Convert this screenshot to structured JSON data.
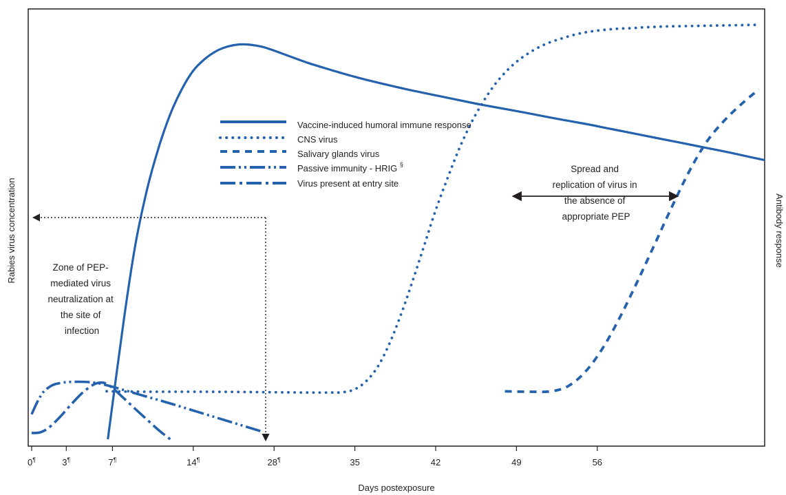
{
  "chart_data": {
    "type": "line",
    "xlabel": "Days postexposure",
    "ylabel_left": "Rabies virus concentration",
    "ylabel_right": "Antibody response",
    "xlim": [
      -0.3,
      63.5
    ],
    "ylim": [
      0,
      100
    ],
    "grid": false,
    "legend_position": "upper-center",
    "accent_color": "#2462ad",
    "ticks": [
      {
        "value": 0,
        "label": "0",
        "mark": "¶"
      },
      {
        "value": 3,
        "label": "3",
        "mark": "¶"
      },
      {
        "value": 7,
        "label": "7",
        "mark": "¶"
      },
      {
        "value": 14,
        "label": "14",
        "mark": "¶"
      },
      {
        "value": 28,
        "label": "28",
        "mark": "¶",
        "position": 21
      },
      {
        "value": 35,
        "label": "35",
        "mark": "",
        "position": 28
      },
      {
        "value": 42,
        "label": "42",
        "mark": "",
        "position": 35
      },
      {
        "value": 49,
        "label": "49",
        "mark": "",
        "position": 42
      },
      {
        "value": 56,
        "label": "56",
        "mark": "",
        "position": 49
      }
    ],
    "series": [
      {
        "name": "Vaccine-induced humoral  immune response",
        "style": "solid",
        "x": [
          6.6,
          8.0,
          9.0,
          10.0,
          11.0,
          12.0,
          13.0,
          14.0,
          15.0,
          16.0,
          17.0,
          18.0,
          19.0,
          20.0,
          21.0,
          22.0,
          24.0,
          26.0,
          28.0,
          30.0,
          33.0,
          36.0,
          39.0,
          42.0,
          45.0,
          48.0,
          50.0,
          52.0,
          54.0,
          56.0,
          58.0,
          60.0,
          62.0,
          63.5
        ],
        "y": [
          0,
          29,
          47,
          60,
          70,
          78,
          84,
          88.5,
          91.3,
          93.2,
          94.3,
          94.8,
          94.7,
          94.2,
          93.3,
          92.3,
          90.3,
          88.6,
          87.0,
          85.6,
          83.7,
          82.0,
          80.3,
          78.8,
          77.2,
          75.7,
          74.6,
          73.5,
          72.4,
          71.3,
          70.2,
          69.1,
          67.9,
          67.0
        ]
      },
      {
        "name": "CNS virus",
        "style": "dotted",
        "x": [
          6.5,
          10.0,
          15.0,
          20.0,
          24.0,
          26.0,
          27.0,
          28.0,
          29.0,
          30.0,
          31.0,
          32.0,
          33.0,
          34.0,
          35.0,
          36.0,
          37.0,
          38.0,
          39.0,
          40.0,
          41.0,
          42.0,
          43.0,
          44.0,
          45.0,
          46.0,
          47.0,
          48.0,
          49.0,
          50.0,
          51.0,
          52.0,
          53.0,
          54.0,
          55.0,
          57.0,
          59.0,
          61.0,
          63.0
        ],
        "y": [
          11.5,
          11.4,
          11.4,
          11.3,
          11.2,
          11.2,
          11.3,
          12.0,
          14.0,
          17.5,
          23.0,
          30.0,
          38.0,
          46.5,
          55.0,
          62.5,
          69.5,
          75.5,
          80.5,
          84.7,
          88.0,
          90.6,
          92.6,
          94.2,
          95.4,
          96.3,
          97.1,
          97.7,
          98.1,
          98.4,
          98.6,
          98.7,
          98.9,
          99.0,
          99.1,
          99.2,
          99.3,
          99.4,
          99.5
        ]
      },
      {
        "name": "Salivary glands virus",
        "style": "dashed",
        "x": [
          41.0,
          43.0,
          45.0,
          46.5,
          48.0,
          49.5,
          51.0,
          52.5,
          54.0,
          55.5,
          57.0,
          58.5,
          60.0,
          61.5,
          63.0
        ],
        "y": [
          11.5,
          11.4,
          11.5,
          12.8,
          16.3,
          22.0,
          29.5,
          38.0,
          47.0,
          56.0,
          64.5,
          71.5,
          76.5,
          80.5,
          84.0
        ]
      },
      {
        "name": "Passive immunity - HRIG",
        "name_mark": "§",
        "style": "dash-dot-dot",
        "x": [
          0.0,
          0.5,
          1.0,
          1.5,
          2.0,
          3.0,
          4.0,
          5.0,
          6.0,
          7.0,
          8.0,
          10.0,
          12.0,
          14.0,
          16.0,
          18.0,
          20.0
        ],
        "y": [
          6.0,
          9.0,
          11.3,
          12.5,
          13.2,
          13.7,
          13.8,
          13.7,
          13.3,
          12.6,
          11.8,
          10.2,
          8.6,
          6.9,
          5.2,
          3.5,
          1.8
        ]
      },
      {
        "name": "Virus present at entry site",
        "style": "dash-dot",
        "x": [
          0.0,
          0.3,
          0.8,
          1.5,
          2.5,
          3.5,
          4.5,
          5.5,
          6.3,
          7.0,
          8.0,
          9.0,
          10.0,
          11.0,
          12.0
        ],
        "y": [
          1.5,
          1.5,
          1.7,
          2.8,
          5.5,
          8.6,
          11.4,
          13.3,
          13.5,
          12.3,
          9.8,
          7.2,
          4.7,
          2.2,
          0.0
        ]
      }
    ],
    "zone_annotation": {
      "text_lines": [
        "Zone of PEP-",
        "mediated virus",
        "neutralization at",
        "the site of",
        "infection"
      ],
      "x_end": 20,
      "y_level": 52.5
    },
    "spread_annotation": {
      "text_lines": [
        "Spread and",
        "replication of virus in",
        "the absence of",
        "appropriate PEP"
      ],
      "x_from": 38.2,
      "x_to": 50.8,
      "y_level": 57.5
    }
  }
}
